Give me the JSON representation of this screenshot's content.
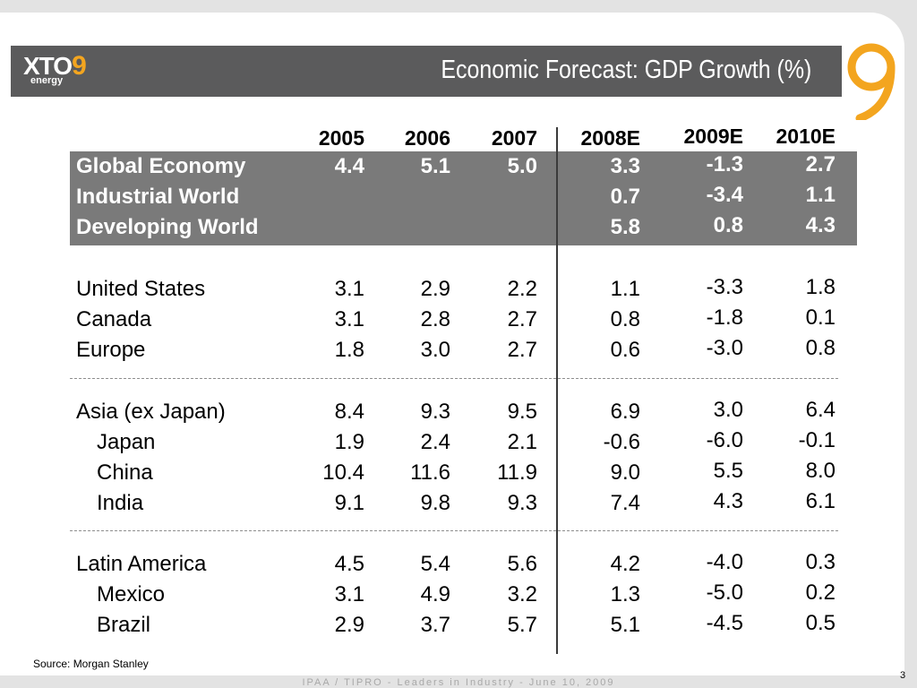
{
  "header": {
    "logo_text": "XTO",
    "logo_nine": "9",
    "logo_sub": "energy",
    "title": "Economic Forecast:  GDP Growth (%)"
  },
  "columns": [
    "2005",
    "2006",
    "2007",
    "2008E",
    "2009E",
    "2010E"
  ],
  "rows": [
    {
      "label": "Global Economy",
      "values": [
        "4.4",
        "5.1",
        "5.0",
        "3.3",
        "-1.3",
        "2.7"
      ]
    },
    {
      "label": "Industrial World",
      "values": [
        "",
        "",
        "",
        "0.7",
        "-3.4",
        "1.1"
      ]
    },
    {
      "label": "Developing World",
      "values": [
        "",
        "",
        "",
        "5.8",
        "0.8",
        "4.3"
      ]
    },
    {
      "label": "United States",
      "values": [
        "3.1",
        "2.9",
        "2.2",
        "1.1",
        "-3.3",
        "1.8"
      ]
    },
    {
      "label": "Canada",
      "values": [
        "3.1",
        "2.8",
        "2.7",
        "0.8",
        "-1.8",
        "0.1"
      ]
    },
    {
      "label": "Europe",
      "values": [
        "1.8",
        "3.0",
        "2.7",
        "0.6",
        "-3.0",
        "0.8"
      ]
    },
    {
      "label": "Asia (ex Japan)",
      "values": [
        "8.4",
        "9.3",
        "9.5",
        "6.9",
        "3.0",
        "6.4"
      ]
    },
    {
      "label": "Japan",
      "values": [
        "1.9",
        "2.4",
        "2.1",
        "-0.6",
        "-6.0",
        "-0.1"
      ]
    },
    {
      "label": "China",
      "values": [
        "10.4",
        "11.6",
        "11.9",
        "9.0",
        "5.5",
        "8.0"
      ]
    },
    {
      "label": "India",
      "values": [
        "9.1",
        "9.8",
        "9.3",
        "7.4",
        "4.3",
        "6.1"
      ]
    },
    {
      "label": "Latin America",
      "values": [
        "4.5",
        "5.4",
        "5.6",
        "4.2",
        "-4.0",
        "0.3"
      ]
    },
    {
      "label": "Mexico",
      "values": [
        "3.1",
        "4.9",
        "3.2",
        "1.3",
        "-5.0",
        "0.2"
      ]
    },
    {
      "label": "Brazil",
      "values": [
        "2.9",
        "3.7",
        "5.7",
        "5.1",
        "-4.5",
        "0.5"
      ]
    }
  ],
  "source": "Source:  Morgan Stanley",
  "footer": "IPAA / TIPRO - Leaders in Industry - June 10, 2009",
  "page_number": "3",
  "colors": {
    "header_bar": "#5b5b5c",
    "shade": "#7a7a7a",
    "accent": "#f3a51f"
  }
}
